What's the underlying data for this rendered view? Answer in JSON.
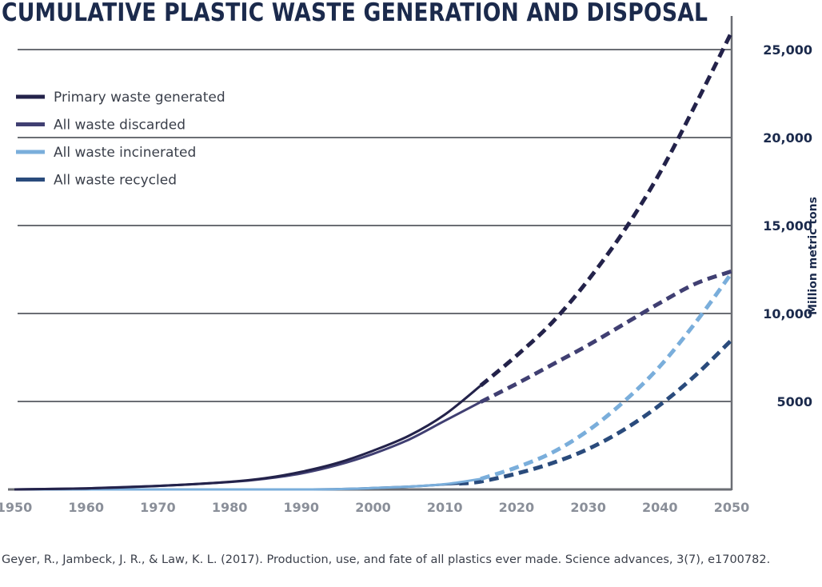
{
  "chart_data": {
    "type": "line",
    "title": "CUMULATIVE PLASTIC WASTE GENERATION AND DISPOSAL",
    "ylabel": "Million metric tons",
    "xlabel": "",
    "xlim": [
      1950,
      2050
    ],
    "ylim": [
      0,
      26000
    ],
    "x_ticks": [
      "1950",
      "1960",
      "1970",
      "1980",
      "1990",
      "2000",
      "2010",
      "2020",
      "2030",
      "2040",
      "2050"
    ],
    "y_ticks": [
      {
        "value": 5000,
        "label": "5000"
      },
      {
        "value": 10000,
        "label": "10,000"
      },
      {
        "value": 15000,
        "label": "15,000"
      },
      {
        "value": 20000,
        "label": "20,000"
      },
      {
        "value": 25000,
        "label": "25,000"
      }
    ],
    "grid": "horizontal",
    "legend_position": "top-left",
    "series": [
      {
        "name": "Primary waste generated",
        "color": "#23224a",
        "solid_until": 2015,
        "points": [
          [
            1950,
            0
          ],
          [
            1960,
            60
          ],
          [
            1970,
            200
          ],
          [
            1980,
            430
          ],
          [
            1985,
            640
          ],
          [
            1990,
            1000
          ],
          [
            1995,
            1500
          ],
          [
            2000,
            2200
          ],
          [
            2005,
            3050
          ],
          [
            2010,
            4250
          ],
          [
            2015,
            5900
          ],
          [
            2020,
            7600
          ],
          [
            2025,
            9500
          ],
          [
            2030,
            11900
          ],
          [
            2035,
            14700
          ],
          [
            2040,
            18000
          ],
          [
            2045,
            21900
          ],
          [
            2050,
            26000
          ]
        ]
      },
      {
        "name": "All waste discarded",
        "color": "#403f72",
        "solid_until": 2015,
        "points": [
          [
            1950,
            0
          ],
          [
            1960,
            60
          ],
          [
            1970,
            200
          ],
          [
            1980,
            420
          ],
          [
            1985,
            610
          ],
          [
            1990,
            910
          ],
          [
            1995,
            1380
          ],
          [
            2000,
            2020
          ],
          [
            2005,
            2830
          ],
          [
            2010,
            3900
          ],
          [
            2015,
            4970
          ],
          [
            2020,
            6000
          ],
          [
            2025,
            7100
          ],
          [
            2030,
            8200
          ],
          [
            2035,
            9400
          ],
          [
            2040,
            10600
          ],
          [
            2045,
            11700
          ],
          [
            2050,
            12400
          ]
        ]
      },
      {
        "name": "All waste incinerated",
        "color": "#7aaedb",
        "solid_until": 2015,
        "points": [
          [
            1950,
            0
          ],
          [
            1960,
            0
          ],
          [
            1970,
            0
          ],
          [
            1980,
            0
          ],
          [
            1990,
            0
          ],
          [
            1995,
            20
          ],
          [
            2000,
            80
          ],
          [
            2005,
            160
          ],
          [
            2010,
            300
          ],
          [
            2015,
            600
          ],
          [
            2020,
            1250
          ],
          [
            2025,
            2100
          ],
          [
            2030,
            3350
          ],
          [
            2035,
            5000
          ],
          [
            2040,
            7000
          ],
          [
            2045,
            9500
          ],
          [
            2050,
            12300
          ]
        ]
      },
      {
        "name": "All waste recycled",
        "color": "#2a4b7c",
        "solid_until": 2012,
        "points": [
          [
            1950,
            0
          ],
          [
            1960,
            0
          ],
          [
            1970,
            0
          ],
          [
            1980,
            0
          ],
          [
            1990,
            0
          ],
          [
            1995,
            20
          ],
          [
            2000,
            80
          ],
          [
            2005,
            160
          ],
          [
            2010,
            280
          ],
          [
            2012,
            330
          ],
          [
            2015,
            450
          ],
          [
            2020,
            900
          ],
          [
            2025,
            1500
          ],
          [
            2030,
            2300
          ],
          [
            2035,
            3400
          ],
          [
            2040,
            4800
          ],
          [
            2045,
            6500
          ],
          [
            2050,
            8500
          ]
        ]
      }
    ]
  },
  "source": "Geyer, R., Jambeck, J. R., & Law, K. L. (2017). Production, use, and fate of all plastics ever made. Science advances, 3(7), e1700782."
}
